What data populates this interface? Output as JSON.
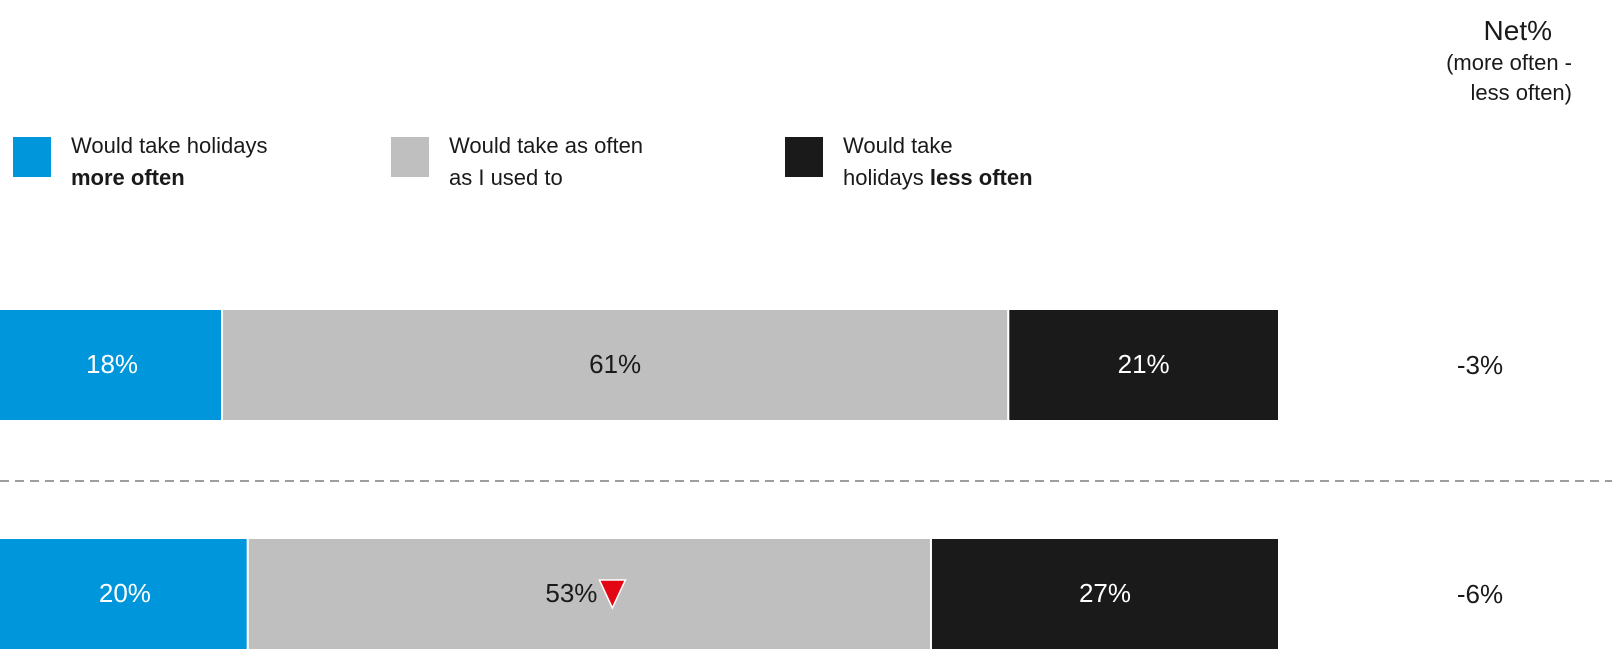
{
  "colors": {
    "more_often": "#0096dc",
    "as_often": "#bfbfbf",
    "less_often": "#1a1a1a",
    "down_marker": "#e30613",
    "divider": "#9e9e9e"
  },
  "legend": {
    "more": {
      "line1": "Would take holidays",
      "bold": "more often"
    },
    "same": {
      "line1": "Would take as often",
      "line2": "as I used to"
    },
    "less": {
      "line1": "Would take",
      "line2_prefix": "holidays ",
      "bold": "less often"
    }
  },
  "net_header": {
    "title": "Net%",
    "subtitle_line1": "(more often -",
    "subtitle_line2": "less often)"
  },
  "chart_data": {
    "type": "bar",
    "orientation": "horizontal",
    "stacked": true,
    "percent_scale": true,
    "series": [
      {
        "name": "Would take holidays more often",
        "color": "#0096dc",
        "values": [
          18,
          20
        ],
        "labels": [
          "18%",
          "20%"
        ]
      },
      {
        "name": "Would take as often as I used to",
        "color": "#bfbfbf",
        "values": [
          61,
          53
        ],
        "labels": [
          "61%",
          "53%"
        ]
      },
      {
        "name": "Would take holidays less often",
        "color": "#1a1a1a",
        "values": [
          21,
          27
        ],
        "labels": [
          "21%",
          "27%"
        ]
      }
    ],
    "net": [
      {
        "value": -3,
        "label": "-3%"
      },
      {
        "value": -6,
        "label": "-6%"
      }
    ],
    "significance_markers": [
      {
        "row": 1,
        "series": 1,
        "direction": "down"
      }
    ],
    "legend_position": "top"
  }
}
